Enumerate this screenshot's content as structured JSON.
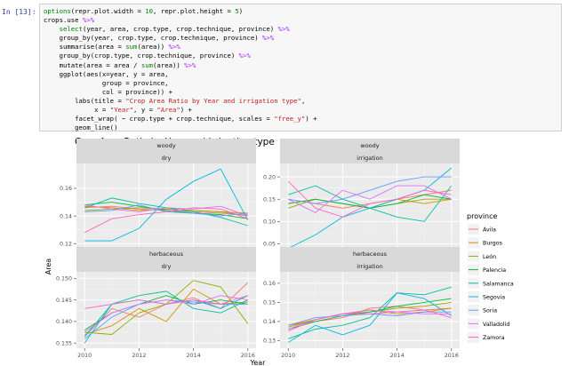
{
  "cell": {
    "prompt": "In [13]:",
    "lines": [
      [
        {
          "t": "options",
          "c": "kw"
        },
        {
          "t": "(repr.plot.width = "
        },
        {
          "t": "10",
          "c": "num"
        },
        {
          "t": ", repr.plot.height = "
        },
        {
          "t": "5",
          "c": "num"
        },
        {
          "t": ")"
        }
      ],
      [
        {
          "t": "crops.use "
        },
        {
          "t": "%>%",
          "c": "op"
        }
      ],
      [
        {
          "t": "    "
        },
        {
          "t": "select",
          "c": "kw"
        },
        {
          "t": "(year, area, crop.type, crop.technique, province) "
        },
        {
          "t": "%>%",
          "c": "op"
        }
      ],
      [
        {
          "t": "    group_by(year, crop.type, crop.technique, province) "
        },
        {
          "t": "%>%",
          "c": "op"
        }
      ],
      [
        {
          "t": "    summarise(area = "
        },
        {
          "t": "sum",
          "c": "kw"
        },
        {
          "t": "(area)) "
        },
        {
          "t": "%>%",
          "c": "op"
        }
      ],
      [
        {
          "t": "    group_by(crop.type, crop.technique, province) "
        },
        {
          "t": "%>%",
          "c": "op"
        }
      ],
      [
        {
          "t": "    mutate(area = area / "
        },
        {
          "t": "sum",
          "c": "kw"
        },
        {
          "t": "(area)) "
        },
        {
          "t": "%>%",
          "c": "op"
        }
      ],
      [
        {
          "t": "    ggplot(aes(x=year, y = area,"
        }
      ],
      [
        {
          "t": "               group = province,"
        }
      ],
      [
        {
          "t": "               col = province)) +"
        }
      ],
      [
        {
          "t": "        labs(title = "
        },
        {
          "t": "\"Crop Area Ratio by Year and irrigation type\"",
          "c": "str"
        },
        {
          "t": ","
        }
      ],
      [
        {
          "t": "             x = "
        },
        {
          "t": "\"Year\"",
          "c": "str"
        },
        {
          "t": ", y = "
        },
        {
          "t": "\"Area\"",
          "c": "str"
        },
        {
          "t": ") +"
        }
      ],
      [
        {
          "t": "        facet_wrap( ~ crop.type + crop.technique, scales = "
        },
        {
          "t": "\"free_y\"",
          "c": "str"
        },
        {
          "t": ") +"
        }
      ],
      [
        {
          "t": "        geom_line()"
        }
      ]
    ]
  },
  "chart_data": {
    "type": "line",
    "title": "Crop Area Ratio by Year and irrigation type",
    "xlabel": "Year",
    "ylabel": "Area",
    "x": [
      2010,
      2011,
      2012,
      2013,
      2014,
      2015,
      2016
    ],
    "x_ticks": [
      "2010",
      "2012",
      "2014",
      "2016"
    ],
    "legend_title": "province",
    "provinces": [
      {
        "name": "Ávila",
        "color": "#f8766d"
      },
      {
        "name": "Burgos",
        "color": "#d39200"
      },
      {
        "name": "León",
        "color": "#93aa00"
      },
      {
        "name": "Palencia",
        "color": "#00ba38"
      },
      {
        "name": "Salamanca",
        "color": "#00c19f"
      },
      {
        "name": "Segovia",
        "color": "#00b9e3"
      },
      {
        "name": "Soria",
        "color": "#619cff"
      },
      {
        "name": "Valladolid",
        "color": "#db72fb"
      },
      {
        "name": "Zamora",
        "color": "#ff61c3"
      }
    ],
    "panels": [
      {
        "strip": [
          "woody",
          "dry"
        ],
        "ylim": [
          0.115,
          0.178
        ],
        "y_ticks": [
          0.12,
          0.14,
          0.16
        ],
        "y_tick_labels": [
          "0.12",
          "0.14",
          "0.16"
        ],
        "series": [
          [
            0.146,
            0.147,
            0.145,
            0.144,
            0.143,
            0.142,
            0.141
          ],
          [
            0.147,
            0.146,
            0.144,
            0.145,
            0.144,
            0.143,
            0.142
          ],
          [
            0.144,
            0.145,
            0.146,
            0.145,
            0.144,
            0.143,
            0.14
          ],
          [
            0.148,
            0.15,
            0.147,
            0.144,
            0.142,
            0.141,
            0.138
          ],
          [
            0.146,
            0.153,
            0.149,
            0.146,
            0.143,
            0.139,
            0.133
          ],
          [
            0.122,
            0.122,
            0.131,
            0.152,
            0.165,
            0.174,
            0.137
          ],
          [
            0.143,
            0.144,
            0.148,
            0.143,
            0.142,
            0.14,
            0.142
          ],
          [
            0.148,
            0.145,
            0.143,
            0.146,
            0.145,
            0.147,
            0.14
          ],
          [
            0.128,
            0.138,
            0.141,
            0.143,
            0.146,
            0.145,
            0.138
          ]
        ]
      },
      {
        "strip": [
          "woody",
          "irrigation"
        ],
        "ylim": [
          0.035,
          0.23
        ],
        "y_ticks": [
          0.05,
          0.1,
          0.15,
          0.2
        ],
        "y_tick_labels": [
          "0.05",
          "0.10",
          "0.15",
          "0.20"
        ],
        "series": [
          [
            0.15,
            0.14,
            0.13,
            0.14,
            0.15,
            0.16,
            0.17
          ],
          [
            0.14,
            0.15,
            0.14,
            0.13,
            0.15,
            0.14,
            0.15
          ],
          [
            0.13,
            0.15,
            0.14,
            0.13,
            0.14,
            0.15,
            0.15
          ],
          [
            0.14,
            0.15,
            0.14,
            0.13,
            0.14,
            0.16,
            0.15
          ],
          [
            0.16,
            0.18,
            0.15,
            0.13,
            0.11,
            0.1,
            0.18
          ],
          [
            0.04,
            0.07,
            0.11,
            0.13,
            0.15,
            0.17,
            0.22
          ],
          [
            0.15,
            0.14,
            0.15,
            0.17,
            0.19,
            0.2,
            0.2
          ],
          [
            0.15,
            0.12,
            0.17,
            0.15,
            0.18,
            0.18,
            0.15
          ],
          [
            0.19,
            0.13,
            0.11,
            0.14,
            0.15,
            0.17,
            0.16
          ]
        ]
      },
      {
        "strip": [
          "herbaceous",
          "dry"
        ],
        "ylim": [
          0.1338,
          0.1515
        ],
        "y_ticks": [
          0.135,
          0.14,
          0.145,
          0.15
        ],
        "y_tick_labels": [
          "0.135",
          "0.140",
          "0.145",
          "0.150"
        ],
        "series": [
          [
            0.1365,
            0.143,
            0.141,
            0.144,
            0.1455,
            0.143,
            0.149
          ],
          [
            0.137,
            0.139,
            0.143,
            0.14,
            0.1475,
            0.144,
            0.1445
          ],
          [
            0.1375,
            0.137,
            0.142,
            0.144,
            0.1495,
            0.148,
            0.1395
          ],
          [
            0.138,
            0.142,
            0.144,
            0.146,
            0.144,
            0.145,
            0.144
          ],
          [
            0.1365,
            0.144,
            0.146,
            0.147,
            0.143,
            0.142,
            0.145
          ],
          [
            0.135,
            0.144,
            0.145,
            0.144,
            0.145,
            0.143,
            0.146
          ],
          [
            0.136,
            0.141,
            0.144,
            0.145,
            0.1445,
            0.144,
            0.144
          ],
          [
            0.1375,
            0.142,
            0.144,
            0.145,
            0.144,
            0.146,
            0.145
          ],
          [
            0.143,
            0.144,
            0.145,
            0.144,
            0.145,
            0.144,
            0.146
          ]
        ]
      },
      {
        "strip": [
          "herbaceous",
          "irrigation"
        ],
        "ylim": [
          0.126,
          0.166
        ],
        "y_ticks": [
          0.13,
          0.14,
          0.15,
          0.16
        ],
        "y_tick_labels": [
          "0.13",
          "0.14",
          "0.15",
          "0.16"
        ],
        "series": [
          [
            0.138,
            0.14,
            0.142,
            0.147,
            0.148,
            0.146,
            0.147
          ],
          [
            0.138,
            0.141,
            0.144,
            0.146,
            0.144,
            0.145,
            0.147
          ],
          [
            0.137,
            0.141,
            0.144,
            0.145,
            0.147,
            0.148,
            0.15
          ],
          [
            0.136,
            0.14,
            0.143,
            0.145,
            0.148,
            0.15,
            0.152
          ],
          [
            0.131,
            0.136,
            0.138,
            0.142,
            0.155,
            0.154,
            0.158
          ],
          [
            0.129,
            0.138,
            0.133,
            0.138,
            0.155,
            0.152,
            0.143
          ],
          [
            0.138,
            0.142,
            0.143,
            0.144,
            0.143,
            0.145,
            0.145
          ],
          [
            0.136,
            0.141,
            0.144,
            0.146,
            0.145,
            0.144,
            0.144
          ],
          [
            0.135,
            0.141,
            0.144,
            0.144,
            0.145,
            0.146,
            0.142
          ]
        ]
      }
    ]
  }
}
